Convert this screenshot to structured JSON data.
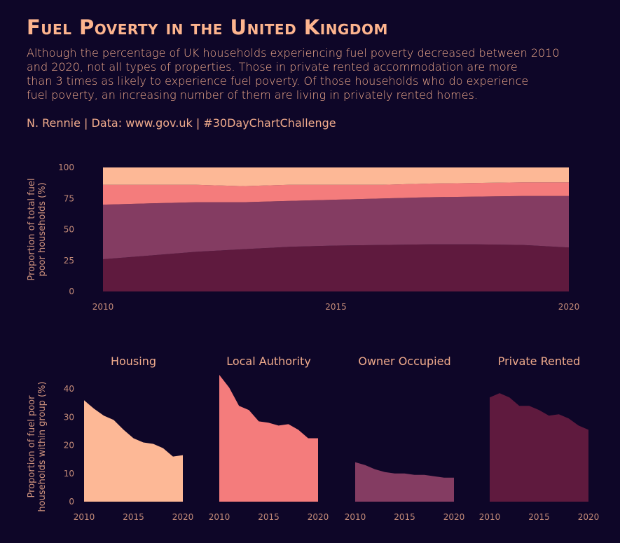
{
  "title": "Fuel Poverty in the United Kingdom",
  "subtitle_lines": [
    "Although the percentage of UK households experiencing fuel poverty decreased between 2010",
    "and 2020, not all types of properties. Those in private rented accommodation are more",
    "than 3 times as likely to experience fuel poverty. Of those households who do experience",
    "fuel poverty, an increasing number of them are living in privately rented homes."
  ],
  "caption": "N. Rennie | Data: www.gov.uk | #30DayChartChallenge",
  "colors": {
    "background": "#0e0628",
    "Housing": "#fdb896",
    "Local Authority": "#f47c7c",
    "Owner Occupied": "#843c62",
    "Private Rented": "#5f1a3e"
  },
  "chart_data": [
    {
      "type": "area",
      "stacked": true,
      "xlabel": "",
      "ylabel": "Proportion of total fuel poor households (%)",
      "ylim": [
        0,
        100
      ],
      "yticks": [
        0,
        25,
        50,
        75,
        100
      ],
      "xticks": [
        2010,
        2015,
        2020
      ],
      "x": [
        2010,
        2011,
        2012,
        2013,
        2014,
        2015,
        2016,
        2017,
        2018,
        2019,
        2020
      ],
      "series": [
        {
          "name": "Private Rented",
          "values": [
            26,
            29,
            32,
            34,
            36,
            37,
            37.5,
            38,
            38,
            37.5,
            35.5
          ]
        },
        {
          "name": "Owner Occupied",
          "values": [
            44,
            42,
            40,
            38,
            37,
            37,
            37.5,
            38,
            38.5,
            39.5,
            41.5
          ]
        },
        {
          "name": "Local Authority",
          "values": [
            16,
            15,
            14,
            13,
            13,
            12,
            11,
            11,
            11,
            11,
            11
          ]
        },
        {
          "name": "Housing",
          "values": [
            14,
            14,
            14,
            15,
            14,
            14,
            14,
            13,
            12.5,
            12,
            12
          ]
        }
      ]
    },
    {
      "type": "area",
      "facets": true,
      "xlabel": "",
      "ylabel": "Proportion of fuel poor households within group (%)",
      "ylim": [
        0,
        45
      ],
      "yticks": [
        0,
        10,
        20,
        30,
        40
      ],
      "xticks": [
        2010,
        2015,
        2020
      ],
      "x": [
        2010,
        2011,
        2012,
        2013,
        2014,
        2015,
        2016,
        2017,
        2018,
        2019,
        2020
      ],
      "series": [
        {
          "name": "Housing",
          "values": [
            36,
            33,
            30.5,
            29,
            25.5,
            22.5,
            21,
            20.5,
            19,
            16,
            16.5
          ]
        },
        {
          "name": "Local Authority",
          "values": [
            45,
            40.5,
            34,
            32.5,
            28.5,
            28,
            27,
            27.5,
            25.5,
            22.5,
            22.5
          ]
        },
        {
          "name": "Owner Occupied",
          "values": [
            14,
            13,
            11.5,
            10.5,
            10,
            10,
            9.5,
            9.5,
            9,
            8.5,
            8.5
          ]
        },
        {
          "name": "Private Rented",
          "values": [
            37,
            38.5,
            37,
            34,
            34,
            32.5,
            30.5,
            31,
            29.5,
            27,
            25.5
          ]
        }
      ]
    }
  ]
}
